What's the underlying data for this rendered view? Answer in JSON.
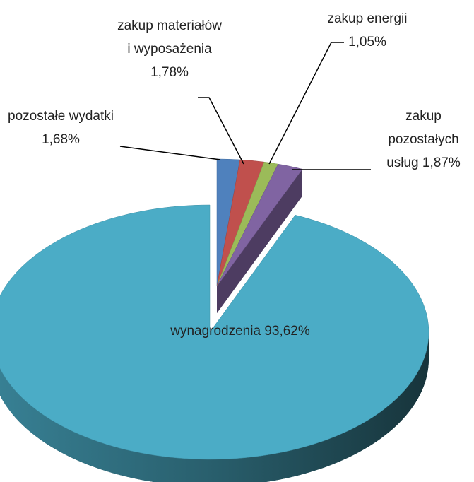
{
  "chart_data": {
    "type": "pie3d",
    "categories": [
      "pozostałe wydatki",
      "zakup materiałów i wyposażenia",
      "zakup energii",
      "zakup pozostałych usług",
      "wynagrodzenia"
    ],
    "values": [
      1.68,
      1.78,
      1.05,
      1.87,
      93.62
    ],
    "value_labels": [
      "1,68%",
      "1,78%",
      "1,05%",
      "1,87%",
      "93,62%"
    ],
    "colors": [
      "#4f81bd",
      "#c0504d",
      "#9bbb59",
      "#8064a2",
      "#4bacc6"
    ]
  }
}
